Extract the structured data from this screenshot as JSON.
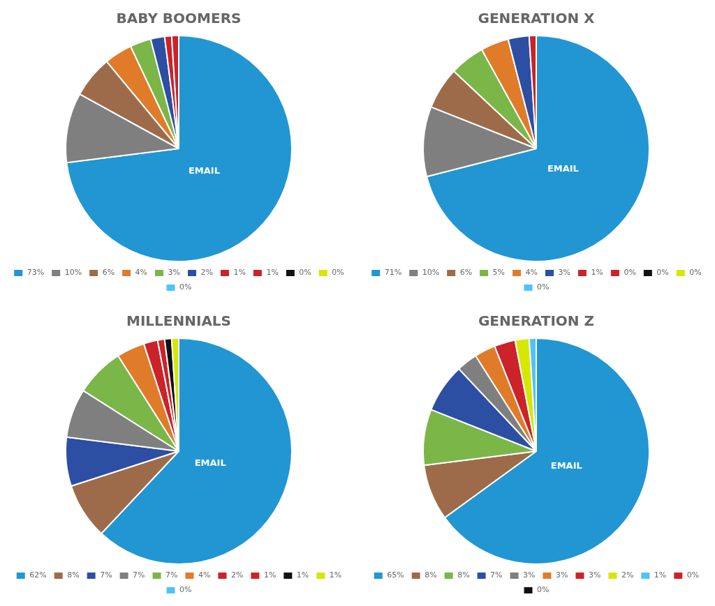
{
  "chart_data": [
    {
      "type": "pie",
      "title": "BABY BOOMERS",
      "annotation": "EMAIL",
      "legend": "bottom",
      "values": [
        73,
        10,
        6,
        4,
        3,
        2,
        1,
        1,
        0,
        0,
        0
      ],
      "value_labels": [
        "73%",
        "10%",
        "6%",
        "4%",
        "3%",
        "2%",
        "1%",
        "1%",
        "0%",
        "0%",
        "0%"
      ],
      "colors": [
        "#2196d3",
        "#7f7f7f",
        "#9e6b4a",
        "#e07b2a",
        "#7ab648",
        "#2c4fa3",
        "#cc2229",
        "#cc2229",
        "#111111",
        "#d4e800",
        "#4fc3f7"
      ]
    },
    {
      "type": "pie",
      "title": "GENERATION X",
      "annotation": "EMAIL",
      "legend": "bottom",
      "values": [
        71,
        10,
        6,
        5,
        4,
        3,
        1,
        0,
        0,
        0,
        0
      ],
      "value_labels": [
        "71%",
        "10%",
        "6%",
        "5%",
        "4%",
        "3%",
        "1%",
        "0%",
        "0%",
        "0%",
        "0%"
      ],
      "colors": [
        "#2196d3",
        "#7f7f7f",
        "#9e6b4a",
        "#7ab648",
        "#e07b2a",
        "#2c4fa3",
        "#cc2229",
        "#cc2229",
        "#111111",
        "#d4e800",
        "#4fc3f7"
      ]
    },
    {
      "type": "pie",
      "title": "MILLENNIALS",
      "annotation": "EMAIL",
      "legend": "bottom",
      "values": [
        62,
        8,
        7,
        7,
        7,
        4,
        2,
        1,
        1,
        1,
        0
      ],
      "value_labels": [
        "62%",
        "8%",
        "7%",
        "7%",
        "7%",
        "4%",
        "2%",
        "1%",
        "1%",
        "1%",
        "0%"
      ],
      "colors": [
        "#2196d3",
        "#9e6b4a",
        "#2c4fa3",
        "#7f7f7f",
        "#7ab648",
        "#e07b2a",
        "#cc2229",
        "#cc2229",
        "#111111",
        "#d4e800",
        "#4fc3f7"
      ]
    },
    {
      "type": "pie",
      "title": "GENERATION Z",
      "annotation": "EMAIL",
      "legend": "bottom",
      "values": [
        65,
        8,
        8,
        7,
        3,
        3,
        3,
        2,
        1,
        0,
        0
      ],
      "value_labels": [
        "65%",
        "8%",
        "8%",
        "7%",
        "3%",
        "3%",
        "3%",
        "2%",
        "1%",
        "0%",
        "0%"
      ],
      "colors": [
        "#2196d3",
        "#9e6b4a",
        "#7ab648",
        "#2c4fa3",
        "#7f7f7f",
        "#e07b2a",
        "#cc2229",
        "#d4e800",
        "#4fc3f7",
        "#cc2229",
        "#111111"
      ]
    }
  ]
}
